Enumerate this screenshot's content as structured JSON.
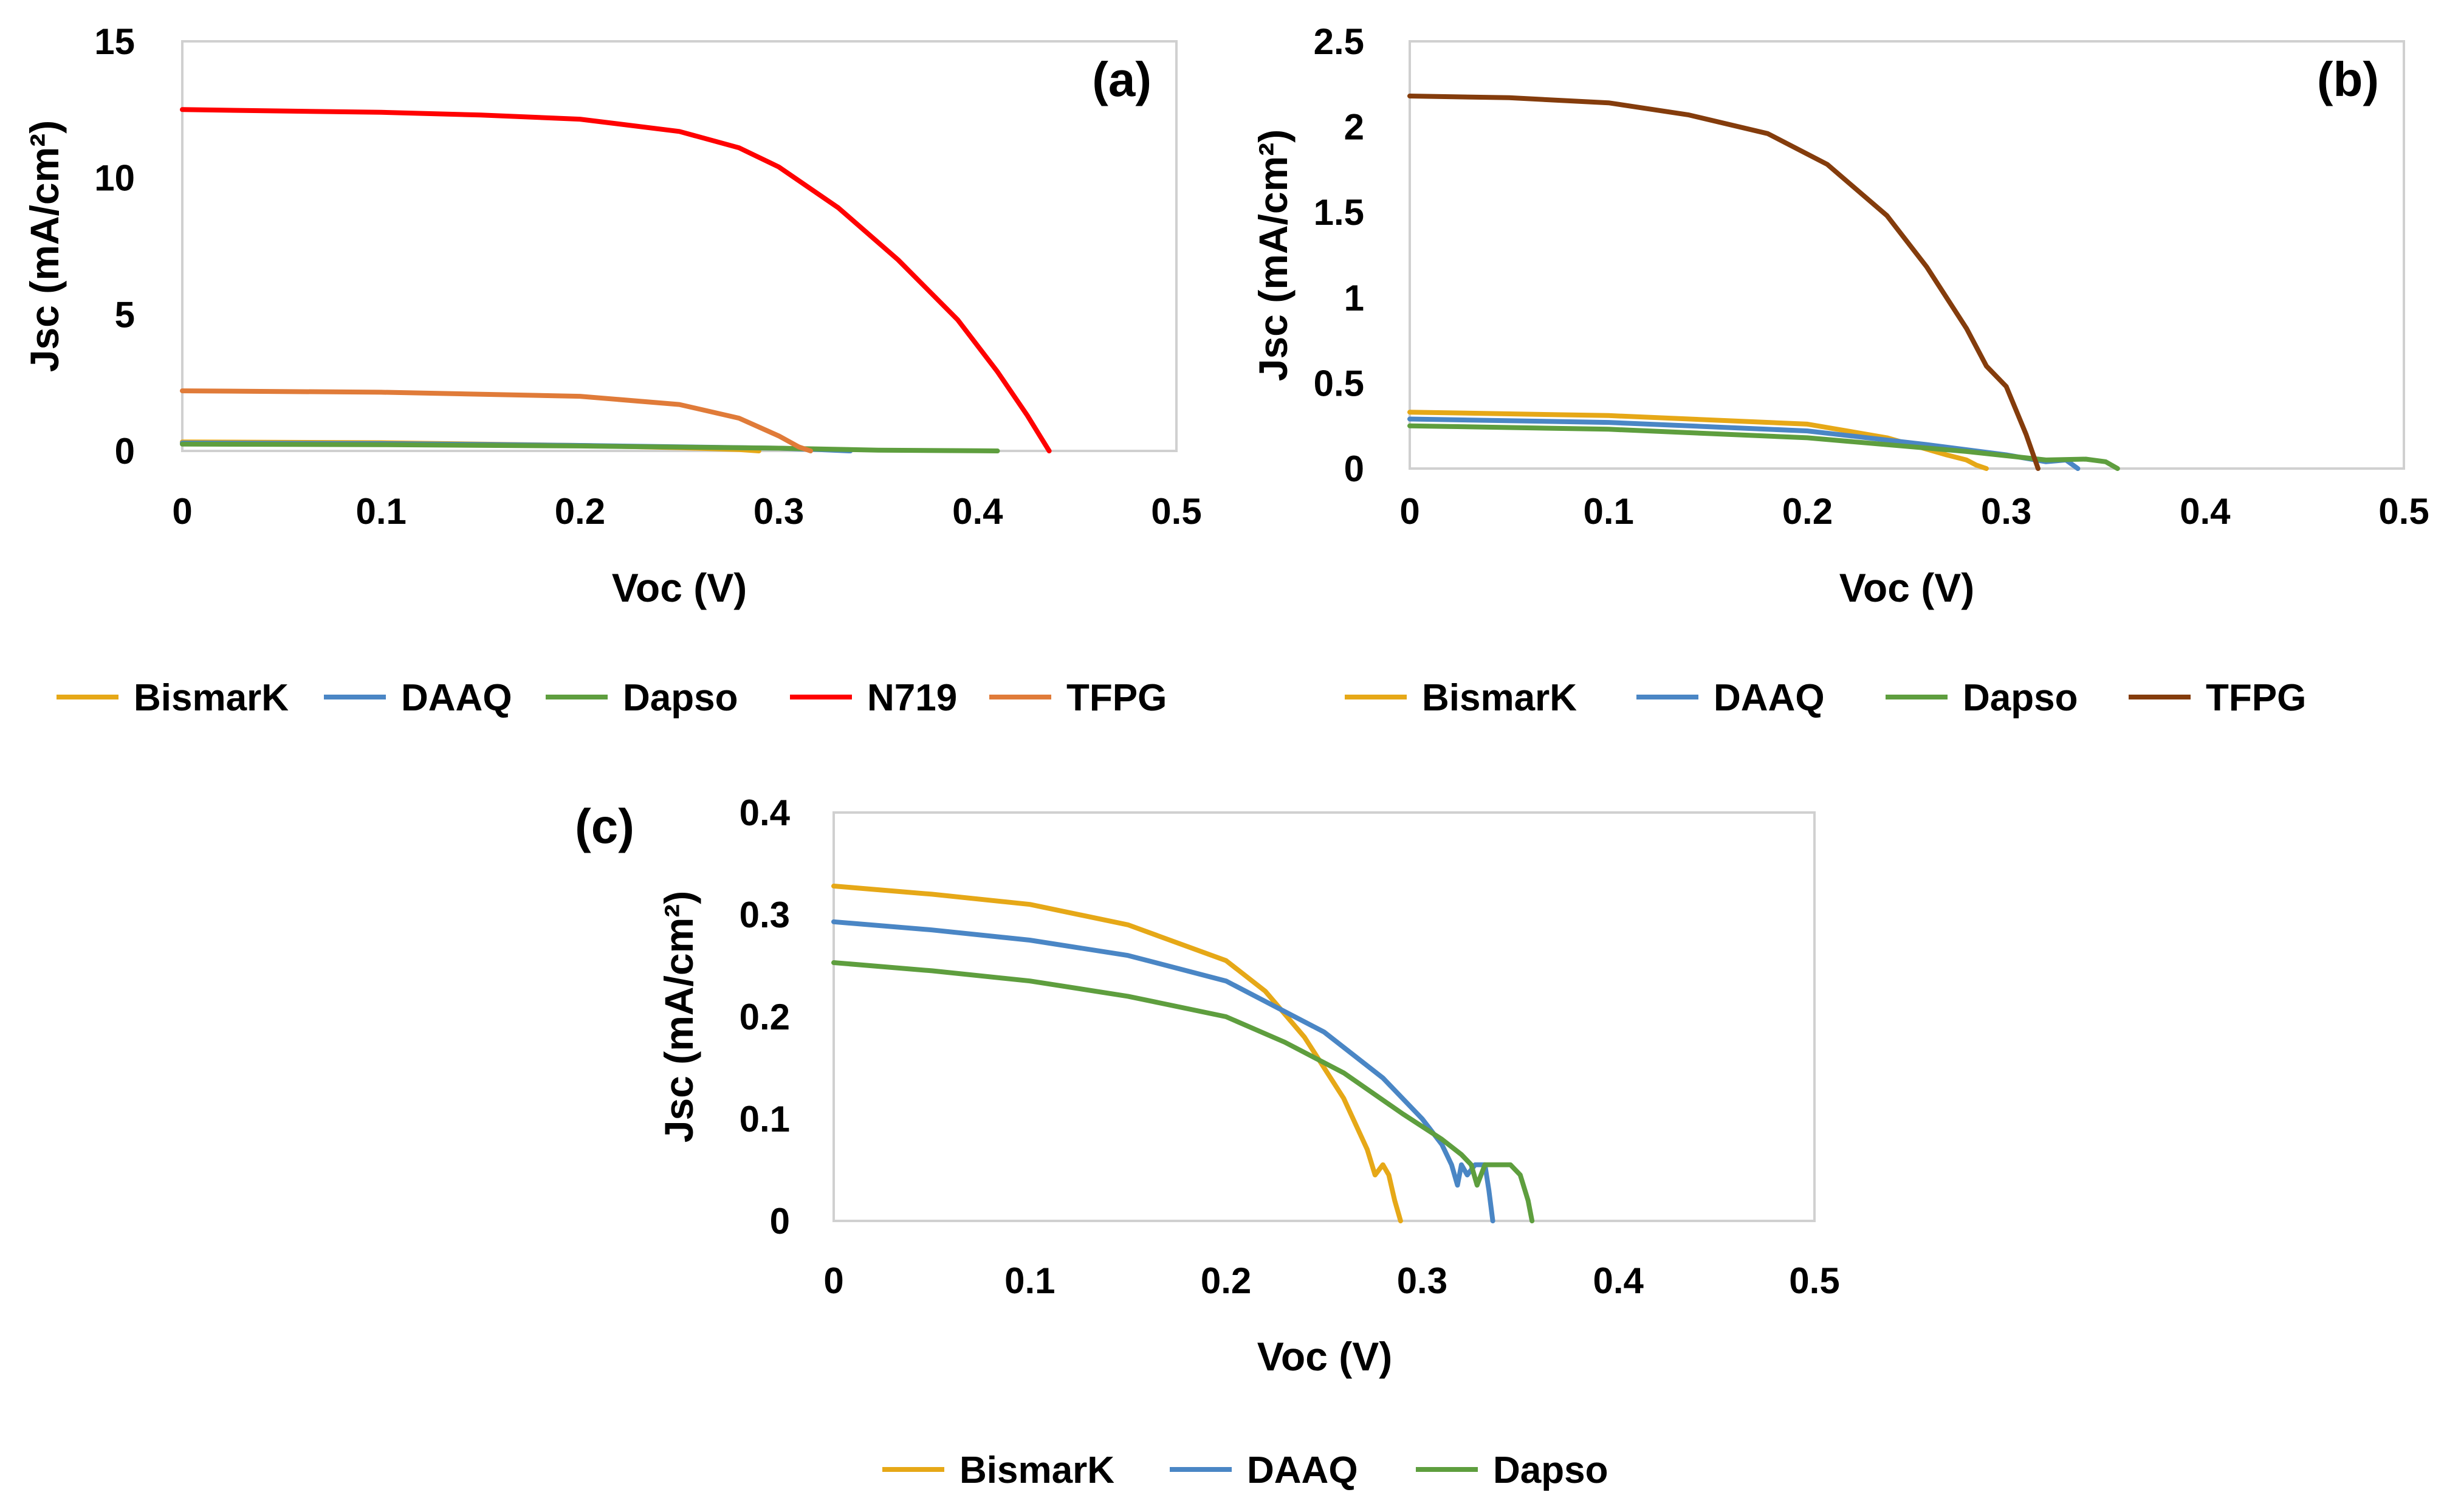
{
  "chart_data": [
    {
      "type": "line",
      "panel_label": "(a)",
      "xlabel": "Voc (V)",
      "ylabel": "Jsc (mA/cm²)",
      "xlim": [
        0,
        0.5
      ],
      "ylim": [
        0,
        15
      ],
      "x_ticks": [
        0,
        0.1,
        0.2,
        0.3,
        0.4,
        0.5
      ],
      "x_tick_labels": [
        "0",
        "0.1",
        "0.2",
        "0.3",
        "0.4",
        "0.5"
      ],
      "y_ticks": [
        0,
        5,
        10,
        15
      ],
      "y_tick_labels": [
        "0",
        "5",
        "10",
        "15"
      ],
      "grid": false,
      "legend_position": "bottom",
      "series": [
        {
          "name": "BismarK",
          "color": "#E6A817",
          "points": [
            [
              0,
              0.33
            ],
            [
              0.1,
              0.3
            ],
            [
              0.2,
              0.2
            ],
            [
              0.25,
              0.12
            ],
            [
              0.28,
              0.05
            ],
            [
              0.29,
              0
            ]
          ]
        },
        {
          "name": "DAAQ",
          "color": "#4A86C5",
          "points": [
            [
              0,
              0.29
            ],
            [
              0.1,
              0.27
            ],
            [
              0.2,
              0.2
            ],
            [
              0.3,
              0.1
            ],
            [
              0.32,
              0.05
            ],
            [
              0.336,
              0
            ]
          ]
        },
        {
          "name": "Dapso",
          "color": "#5E9E3E",
          "points": [
            [
              0,
              0.25
            ],
            [
              0.1,
              0.23
            ],
            [
              0.2,
              0.18
            ],
            [
              0.3,
              0.1
            ],
            [
              0.35,
              0.03
            ],
            [
              0.4,
              0.005
            ],
            [
              0.41,
              0
            ]
          ]
        },
        {
          "name": "N719",
          "color": "#FF0000",
          "points": [
            [
              0,
              12.5
            ],
            [
              0.05,
              12.45
            ],
            [
              0.1,
              12.4
            ],
            [
              0.15,
              12.3
            ],
            [
              0.2,
              12.15
            ],
            [
              0.25,
              11.7
            ],
            [
              0.28,
              11.1
            ],
            [
              0.3,
              10.4
            ],
            [
              0.33,
              8.9
            ],
            [
              0.36,
              7.0
            ],
            [
              0.39,
              4.8
            ],
            [
              0.41,
              2.9
            ],
            [
              0.425,
              1.3
            ],
            [
              0.436,
              0
            ]
          ]
        },
        {
          "name": "TFPG",
          "color": "#E07B39",
          "points": [
            [
              0,
              2.2
            ],
            [
              0.1,
              2.15
            ],
            [
              0.2,
              2.0
            ],
            [
              0.25,
              1.7
            ],
            [
              0.28,
              1.2
            ],
            [
              0.3,
              0.55
            ],
            [
              0.31,
              0.15
            ],
            [
              0.316,
              0
            ]
          ]
        }
      ]
    },
    {
      "type": "line",
      "panel_label": "(b)",
      "xlabel": "Voc (V)",
      "ylabel": "Jsc (mA/cm²)",
      "xlim": [
        0,
        0.5
      ],
      "ylim": [
        0,
        2.5
      ],
      "x_ticks": [
        0,
        0.1,
        0.2,
        0.3,
        0.4,
        0.5
      ],
      "x_tick_labels": [
        "0",
        "0.1",
        "0.2",
        "0.3",
        "0.4",
        "0.5"
      ],
      "y_ticks": [
        0,
        0.5,
        1,
        1.5,
        2,
        2.5
      ],
      "y_tick_labels": [
        "0",
        "0.5",
        "1",
        "1.5",
        "2",
        "2.5"
      ],
      "grid": false,
      "legend_position": "bottom",
      "series": [
        {
          "name": "BismarK",
          "color": "#E6A817",
          "points": [
            [
              0,
              0.33
            ],
            [
              0.1,
              0.31
            ],
            [
              0.2,
              0.26
            ],
            [
              0.24,
              0.18
            ],
            [
              0.27,
              0.08
            ],
            [
              0.28,
              0.05
            ],
            [
              0.285,
              0.02
            ],
            [
              0.29,
              0
            ]
          ]
        },
        {
          "name": "DAAQ",
          "color": "#4A86C5",
          "points": [
            [
              0,
              0.29
            ],
            [
              0.1,
              0.27
            ],
            [
              0.2,
              0.22
            ],
            [
              0.26,
              0.14
            ],
            [
              0.3,
              0.08
            ],
            [
              0.32,
              0.04
            ],
            [
              0.33,
              0.05
            ],
            [
              0.336,
              0
            ]
          ]
        },
        {
          "name": "Dapso",
          "color": "#5E9E3E",
          "points": [
            [
              0,
              0.25
            ],
            [
              0.1,
              0.23
            ],
            [
              0.2,
              0.18
            ],
            [
              0.28,
              0.1
            ],
            [
              0.32,
              0.05
            ],
            [
              0.34,
              0.055
            ],
            [
              0.35,
              0.04
            ],
            [
              0.356,
              0
            ]
          ]
        },
        {
          "name": "TFPG",
          "color": "#843C0C",
          "points": [
            [
              0,
              2.18
            ],
            [
              0.05,
              2.17
            ],
            [
              0.1,
              2.14
            ],
            [
              0.14,
              2.07
            ],
            [
              0.18,
              1.96
            ],
            [
              0.21,
              1.78
            ],
            [
              0.24,
              1.48
            ],
            [
              0.26,
              1.18
            ],
            [
              0.28,
              0.82
            ],
            [
              0.29,
              0.6
            ],
            [
              0.3,
              0.48
            ],
            [
              0.31,
              0.2
            ],
            [
              0.316,
              0
            ]
          ]
        }
      ]
    },
    {
      "type": "line",
      "panel_label": "(c)",
      "xlabel": "Voc (V)",
      "ylabel": "Jsc (mA/cm²)",
      "xlim": [
        0,
        0.5
      ],
      "ylim": [
        0,
        0.4
      ],
      "x_ticks": [
        0,
        0.1,
        0.2,
        0.3,
        0.4,
        0.5
      ],
      "x_tick_labels": [
        "0",
        "0.1",
        "0.2",
        "0.3",
        "0.4",
        "0.5"
      ],
      "y_ticks": [
        0,
        0.1,
        0.2,
        0.3,
        0.4
      ],
      "y_tick_labels": [
        "0",
        "0.1",
        "0.2",
        "0.3",
        "0.4"
      ],
      "grid": false,
      "legend_position": "bottom",
      "series": [
        {
          "name": "BismarK",
          "color": "#E6A817",
          "points": [
            [
              0,
              0.328
            ],
            [
              0.05,
              0.32
            ],
            [
              0.1,
              0.31
            ],
            [
              0.15,
              0.29
            ],
            [
              0.2,
              0.255
            ],
            [
              0.22,
              0.225
            ],
            [
              0.24,
              0.18
            ],
            [
              0.26,
              0.12
            ],
            [
              0.272,
              0.07
            ],
            [
              0.276,
              0.045
            ],
            [
              0.28,
              0.055
            ],
            [
              0.283,
              0.045
            ],
            [
              0.286,
              0.02
            ],
            [
              0.289,
              0
            ]
          ]
        },
        {
          "name": "DAAQ",
          "color": "#4A86C5",
          "points": [
            [
              0,
              0.293
            ],
            [
              0.05,
              0.285
            ],
            [
              0.1,
              0.275
            ],
            [
              0.15,
              0.26
            ],
            [
              0.2,
              0.235
            ],
            [
              0.25,
              0.185
            ],
            [
              0.28,
              0.14
            ],
            [
              0.3,
              0.1
            ],
            [
              0.31,
              0.075
            ],
            [
              0.315,
              0.055
            ],
            [
              0.318,
              0.035
            ],
            [
              0.32,
              0.055
            ],
            [
              0.323,
              0.045
            ],
            [
              0.327,
              0.055
            ],
            [
              0.332,
              0.055
            ],
            [
              0.334,
              0.03
            ],
            [
              0.336,
              0
            ]
          ]
        },
        {
          "name": "Dapso",
          "color": "#5E9E3E",
          "points": [
            [
              0,
              0.253
            ],
            [
              0.05,
              0.245
            ],
            [
              0.1,
              0.235
            ],
            [
              0.15,
              0.22
            ],
            [
              0.2,
              0.2
            ],
            [
              0.23,
              0.175
            ],
            [
              0.26,
              0.145
            ],
            [
              0.29,
              0.105
            ],
            [
              0.31,
              0.08
            ],
            [
              0.32,
              0.065
            ],
            [
              0.325,
              0.055
            ],
            [
              0.328,
              0.035
            ],
            [
              0.332,
              0.055
            ],
            [
              0.34,
              0.055
            ],
            [
              0.345,
              0.055
            ],
            [
              0.35,
              0.045
            ],
            [
              0.354,
              0.02
            ],
            [
              0.356,
              0
            ]
          ]
        }
      ]
    }
  ]
}
